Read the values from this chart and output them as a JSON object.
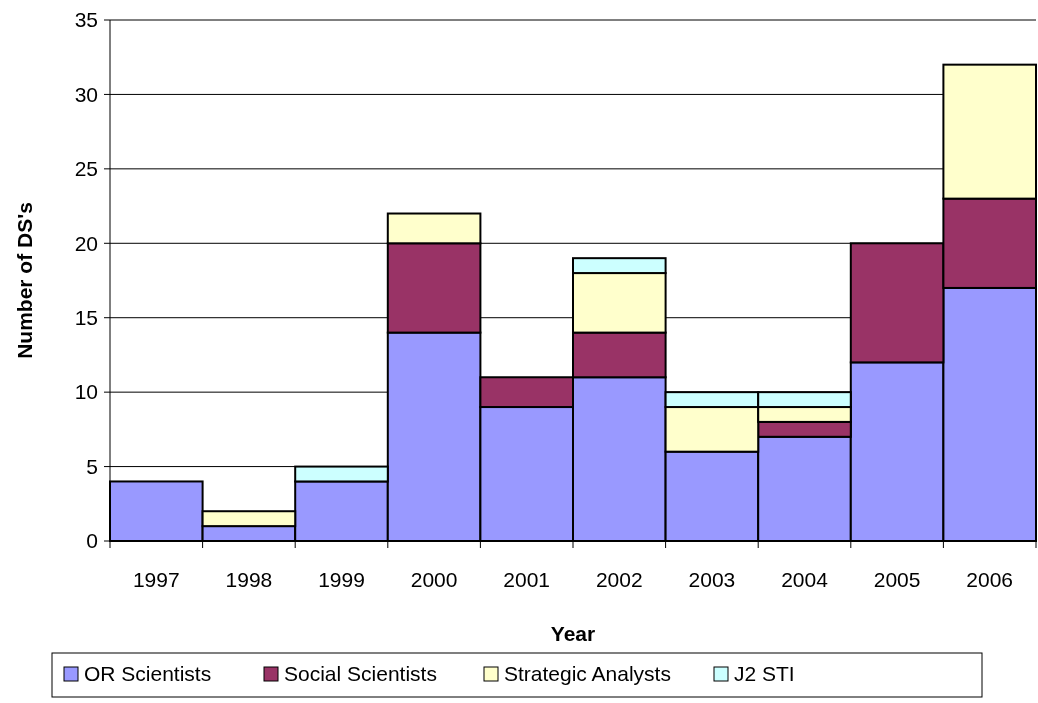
{
  "chart_data": {
    "type": "bar",
    "stacked": true,
    "xlabel": "Year",
    "ylabel": "Number of DS's",
    "categories": [
      "1997",
      "1998",
      "1999",
      "2000",
      "2001",
      "2002",
      "2003",
      "2004",
      "2005",
      "2006"
    ],
    "series": [
      {
        "name": "OR Scientists",
        "color": "#9999ff",
        "values": [
          4,
          1,
          4,
          14,
          9,
          11,
          6,
          7,
          12,
          17
        ]
      },
      {
        "name": "Social Scientists",
        "color": "#993366",
        "values": [
          0,
          0,
          0,
          6,
          2,
          3,
          0,
          1,
          8,
          6
        ]
      },
      {
        "name": "Strategic Analysts",
        "color": "#ffffcc",
        "values": [
          0,
          1,
          0,
          2,
          0,
          4,
          3,
          1,
          0,
          9
        ]
      },
      {
        "name": "J2 STI",
        "color": "#ccffff",
        "values": [
          0,
          0,
          1,
          0,
          0,
          1,
          1,
          1,
          0,
          0
        ]
      }
    ],
    "ylim": [
      0,
      35
    ],
    "yticks": [
      0,
      5,
      10,
      15,
      20,
      25,
      30,
      35
    ],
    "grid": "y",
    "legend": "bottom"
  }
}
